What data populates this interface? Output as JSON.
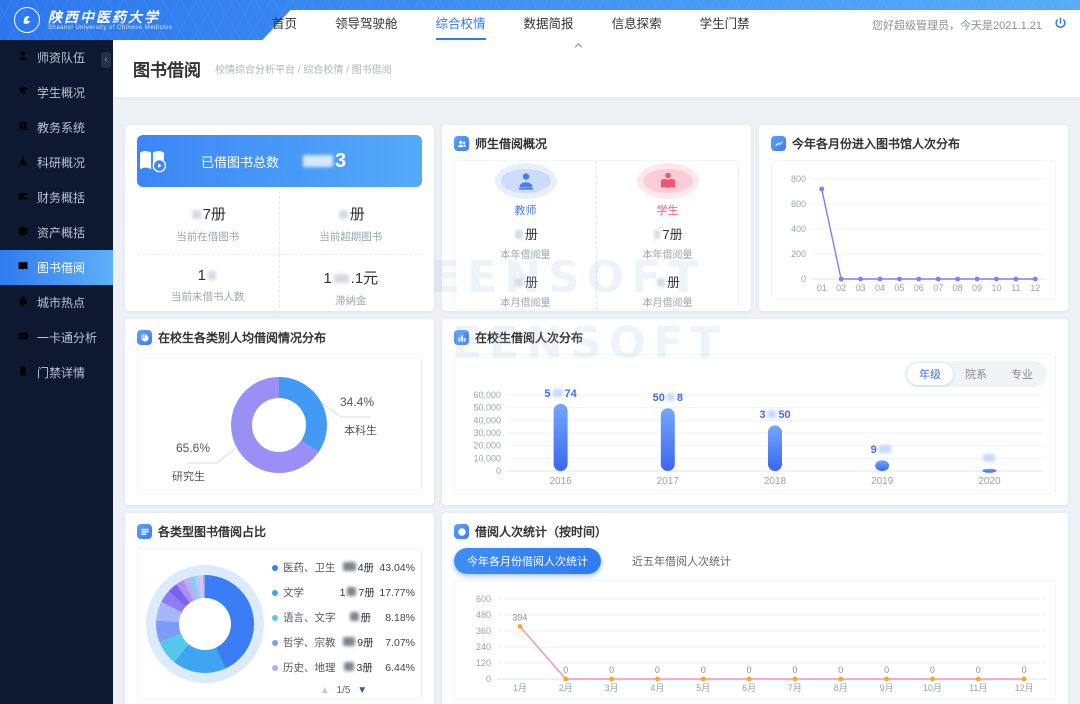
{
  "header": {
    "logo": {
      "title": "陕西中医药大学",
      "subtitle": "Shaanxi University of Chinese Medicine"
    },
    "nav": {
      "items": [
        "首页",
        "领导驾驶舱",
        "综合校情",
        "数据简报",
        "信息探索",
        "学生门禁"
      ],
      "active": "综合校情"
    },
    "greeting": "您好超级管理员，今天是2021.1.21"
  },
  "sidebar": {
    "items": [
      {
        "label": "师资队伍",
        "icon": "teacher-icon"
      },
      {
        "label": "学生概况",
        "icon": "student-icon"
      },
      {
        "label": "教务系统",
        "icon": "book-icon"
      },
      {
        "label": "科研概况",
        "icon": "flask-icon"
      },
      {
        "label": "财务概括",
        "icon": "wallet-icon"
      },
      {
        "label": "资产概括",
        "icon": "cube-icon"
      },
      {
        "label": "图书借阅",
        "icon": "open-book-icon"
      },
      {
        "label": "城市热点",
        "icon": "flame-icon"
      },
      {
        "label": "一卡通分析",
        "icon": "id-card-icon"
      },
      {
        "label": "门禁详情",
        "icon": "door-icon"
      }
    ],
    "active": "图书借阅"
  },
  "page": {
    "title": "图书借阅",
    "breadcrumb": "校情综合分析平台 / 综合校情 / 图书借阅"
  },
  "summary": {
    "banner": {
      "label": "已借图书总数",
      "value_segments": [
        {
          "r": 30
        },
        {
          "t": "3"
        }
      ]
    },
    "stats": [
      {
        "value": [
          {
            "r": 9
          },
          {
            "t": "7册"
          }
        ],
        "label": "当前在借图书"
      },
      {
        "value": [
          {
            "r": 9
          },
          {
            "t": "册"
          }
        ],
        "label": "当前超期图书"
      },
      {
        "value": [
          {
            "t": "1"
          },
          {
            "r": 8
          }
        ],
        "label": "当前未借书人数"
      },
      {
        "value": [
          {
            "t": "1"
          },
          {
            "r": 15
          },
          {
            "t": ".1元"
          }
        ],
        "label": "滞纳金"
      }
    ]
  },
  "teacher_student": {
    "title": "师生借阅概况",
    "groups": [
      {
        "label": "教师",
        "theme": "blue",
        "rows": [
          {
            "value": [
              {
                "r": 8
              },
              {
                "t": "册"
              }
            ],
            "label": "本年借阅量"
          },
          {
            "value": [
              {
                "r": 8
              },
              {
                "t": "册"
              }
            ],
            "label": "本月借阅量"
          }
        ]
      },
      {
        "label": "学生",
        "theme": "pink",
        "rows": [
          {
            "value": [
              {
                "r": 6
              },
              {
                "t": "7册"
              }
            ],
            "label": "本年借阅量"
          },
          {
            "value": [
              {
                "r": 8
              },
              {
                "t": "册"
              }
            ],
            "label": "本月借阅量"
          }
        ]
      }
    ]
  },
  "chart_data": [
    {
      "id": "entries",
      "type": "line",
      "title": "今年各月份进入图书馆人次分布",
      "x": [
        "01",
        "02",
        "03",
        "04",
        "05",
        "06",
        "07",
        "08",
        "09",
        "10",
        "11",
        "12"
      ],
      "values": [
        720,
        0,
        0,
        0,
        0,
        0,
        0,
        0,
        0,
        0,
        0,
        0
      ],
      "ylim": [
        0,
        800
      ],
      "yticks": [
        "0",
        "200",
        "400",
        "600",
        "800"
      ],
      "grid": true,
      "legend_position": "none",
      "line_color": "#7b80f2"
    },
    {
      "id": "per_capita",
      "type": "pie",
      "title": "在校生各类别人均借阅情况分布",
      "slices": [
        {
          "label": "本科生",
          "value": 34.4,
          "pct_label": "34.4%",
          "color": "#419bf4"
        },
        {
          "label": "研究生",
          "value": 65.6,
          "pct_label": "65.6%",
          "color": "#9a8ff5"
        }
      ]
    },
    {
      "id": "grade_borrow",
      "type": "bar",
      "title": "在校生借阅人次分布",
      "tabs": [
        "年级",
        "院系",
        "专业"
      ],
      "active_tab": "年级",
      "categories": [
        "2016",
        "2017",
        "2018",
        "2019",
        "2020"
      ],
      "values": [
        53000,
        49500,
        36000,
        8500,
        1800
      ],
      "value_labels": [
        [
          {
            "t": "5"
          },
          {
            "r": 10
          },
          {
            "t": "74"
          }
        ],
        [
          {
            "t": "50"
          },
          {
            "r": 8
          },
          {
            "t": "8"
          }
        ],
        [
          {
            "t": "3"
          },
          {
            "r": 9
          },
          {
            "t": "50"
          }
        ],
        [
          {
            "t": "9"
          },
          {
            "r": 13
          }
        ],
        [
          {
            "r": 12
          }
        ]
      ],
      "ylim": [
        0,
        60000
      ],
      "yticks": [
        "0",
        "10,000",
        "20,000",
        "30,000",
        "40,000",
        "50,000",
        "60,000"
      ],
      "grid": true,
      "bar_color_top": "#74a7f9",
      "bar_color_bottom": "#3a67f1"
    },
    {
      "id": "book_types",
      "type": "pie",
      "title": "各类型图书借阅占比",
      "legend": [
        {
          "name": "医药、卫生",
          "count": [
            {
              "r": 13
            },
            {
              "t": "4册"
            }
          ],
          "pct": "43.04%",
          "value": 43.04,
          "color": "#3b7df5"
        },
        {
          "name": "文学",
          "count": [
            {
              "t": "1"
            },
            {
              "r": 9
            },
            {
              "t": "7册"
            }
          ],
          "pct": "17.77%",
          "value": 17.77,
          "color": "#3fa5f3"
        },
        {
          "name": "语言、文字",
          "count": [
            {
              "r": 9
            },
            {
              "t": "册"
            }
          ],
          "pct": "8.18%",
          "value": 8.18,
          "color": "#55c8ec"
        },
        {
          "name": "哲学、宗教",
          "count": [
            {
              "r": 12
            },
            {
              "t": "9册"
            }
          ],
          "pct": "7.07%",
          "value": 7.07,
          "color": "#7e9cf7"
        },
        {
          "name": "历史、地理",
          "count": [
            {
              "r": 10
            },
            {
              "t": "3册"
            }
          ],
          "pct": "6.44%",
          "value": 6.44,
          "color": "#a4b7fa"
        }
      ],
      "others": [
        {
          "value": 4.2,
          "color": "#8f7bf3"
        },
        {
          "value": 3.3,
          "color": "#7b63ee"
        },
        {
          "value": 2.6,
          "color": "#a98ff6"
        },
        {
          "value": 2.1,
          "color": "#c2a9f8"
        },
        {
          "value": 1.8,
          "color": "#87cdf1"
        },
        {
          "value": 1.5,
          "color": "#b9c6fb"
        },
        {
          "value": 1.3,
          "color": "#d5c6fa"
        },
        {
          "value": 0.7,
          "color": "#93aaf8"
        }
      ],
      "pagination": {
        "up": "▲",
        "label": "1/5",
        "down": "▼"
      }
    },
    {
      "id": "borrow_time",
      "type": "line",
      "title": "借阅人次统计（按时间）",
      "buttons": [
        "今年各月份借阅人次统计",
        "近五年借阅人次统计"
      ],
      "active_button": 0,
      "x": [
        "1月",
        "2月",
        "3月",
        "4月",
        "5月",
        "6月",
        "7月",
        "8月",
        "9月",
        "10月",
        "11月",
        "12月"
      ],
      "values": [
        394,
        0,
        0,
        0,
        0,
        0,
        0,
        0,
        0,
        0,
        0,
        0
      ],
      "point_labels": [
        "394",
        "0",
        "0",
        "0",
        "0",
        "0",
        "0",
        "0",
        "0",
        "0",
        "0",
        "0"
      ],
      "ylim": [
        0,
        600
      ],
      "yticks": [
        "0",
        "120",
        "240",
        "360",
        "480",
        "600"
      ],
      "grid": true,
      "line_color": "#f78fb3",
      "marker_color": "#f5a623"
    }
  ],
  "watermark": {
    "text": "EENSOFT"
  }
}
